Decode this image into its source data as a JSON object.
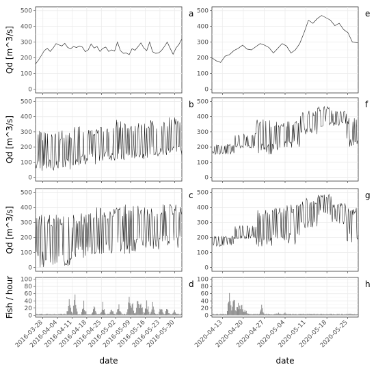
{
  "chart_data": {
    "type": "line",
    "title": "",
    "xlabel": "date",
    "grid": true,
    "columns": [
      {
        "name": "left",
        "x_ticks": [
          "2016-03-28",
          "2016-04-04",
          "2016-04-11",
          "2016-04-18",
          "2016-04-25",
          "2016-05-02",
          "2016-05-09",
          "2016-05-16",
          "2016-05-23",
          "2016-05-30"
        ]
      },
      {
        "name": "right",
        "x_ticks": [
          "2020-04-13",
          "2020-04-20",
          "2020-04-27",
          "2020-05-04",
          "2020-05-11",
          "2020-05-18",
          "2020-05-25"
        ]
      }
    ],
    "rows": [
      {
        "ylabel": "Qd  [m^3/s]",
        "ylim": [
          0,
          500
        ],
        "yticks": [
          "0",
          "100",
          "200",
          "300",
          "400",
          "500"
        ]
      },
      {
        "ylabel": "Qd  [m^3/s]",
        "ylim": [
          0,
          500
        ],
        "yticks": [
          "0",
          "100",
          "200",
          "300",
          "400",
          "500"
        ]
      },
      {
        "ylabel": "Qd  [m^3/s]",
        "ylim": [
          0,
          500
        ],
        "yticks": [
          "0",
          "100",
          "200",
          "300",
          "400",
          "500"
        ]
      },
      {
        "ylabel": "Fish / hour",
        "ylim": [
          0,
          100
        ],
        "yticks": [
          "0",
          "20",
          "40",
          "60",
          "80",
          "100"
        ]
      }
    ],
    "panels": [
      {
        "label": "a",
        "row": 0,
        "col": 0,
        "type": "line",
        "points": [
          [
            0,
            160
          ],
          [
            0.02,
            185
          ],
          [
            0.04,
            215
          ],
          [
            0.06,
            245
          ],
          [
            0.08,
            260
          ],
          [
            0.1,
            240
          ],
          [
            0.12,
            262
          ],
          [
            0.14,
            290
          ],
          [
            0.16,
            282
          ],
          [
            0.18,
            275
          ],
          [
            0.2,
            292
          ],
          [
            0.22,
            265
          ],
          [
            0.24,
            258
          ],
          [
            0.26,
            272
          ],
          [
            0.28,
            265
          ],
          [
            0.3,
            275
          ],
          [
            0.32,
            268
          ],
          [
            0.34,
            238
          ],
          [
            0.36,
            250
          ],
          [
            0.38,
            288
          ],
          [
            0.4,
            262
          ],
          [
            0.42,
            272
          ],
          [
            0.44,
            240
          ],
          [
            0.46,
            260
          ],
          [
            0.48,
            268
          ],
          [
            0.5,
            240
          ],
          [
            0.52,
            250
          ],
          [
            0.54,
            242
          ],
          [
            0.56,
            300
          ],
          [
            0.58,
            245
          ],
          [
            0.6,
            228
          ],
          [
            0.62,
            230
          ],
          [
            0.64,
            220
          ],
          [
            0.66,
            258
          ],
          [
            0.68,
            248
          ],
          [
            0.7,
            270
          ],
          [
            0.72,
            295
          ],
          [
            0.74,
            262
          ],
          [
            0.76,
            245
          ],
          [
            0.78,
            300
          ],
          [
            0.8,
            238
          ],
          [
            0.82,
            228
          ],
          [
            0.84,
            230
          ],
          [
            0.86,
            245
          ],
          [
            0.88,
            270
          ],
          [
            0.9,
            300
          ],
          [
            0.92,
            260
          ],
          [
            0.94,
            222
          ],
          [
            0.96,
            262
          ],
          [
            0.98,
            285
          ],
          [
            1.0,
            320
          ]
        ]
      },
      {
        "label": "b",
        "row": 1,
        "col": 0,
        "type": "dense",
        "segments": [
          [
            0,
            0.25,
            40,
            310
          ],
          [
            0.25,
            0.45,
            80,
            340
          ],
          [
            0.45,
            0.55,
            110,
            330
          ],
          [
            0.55,
            0.62,
            100,
            400
          ],
          [
            0.62,
            0.75,
            120,
            360
          ],
          [
            0.75,
            0.9,
            130,
            380
          ],
          [
            0.9,
            1.0,
            140,
            400
          ]
        ]
      },
      {
        "label": "c",
        "row": 2,
        "col": 0,
        "type": "dense",
        "segments": [
          [
            0,
            0.25,
            0,
            350
          ],
          [
            0.25,
            0.4,
            60,
            360
          ],
          [
            0.4,
            0.55,
            80,
            400
          ],
          [
            0.55,
            0.7,
            90,
            420
          ],
          [
            0.7,
            0.85,
            120,
            400
          ],
          [
            0.85,
            1.0,
            130,
            420
          ]
        ]
      },
      {
        "label": "d",
        "row": 3,
        "col": 0,
        "type": "bar",
        "peaks": [
          [
            0.23,
            48
          ],
          [
            0.27,
            60
          ],
          [
            0.33,
            45
          ],
          [
            0.4,
            30
          ],
          [
            0.46,
            40
          ],
          [
            0.52,
            22
          ],
          [
            0.57,
            35
          ],
          [
            0.64,
            60
          ],
          [
            0.66,
            55
          ],
          [
            0.7,
            70
          ],
          [
            0.72,
            62
          ],
          [
            0.76,
            50
          ],
          [
            0.8,
            38
          ],
          [
            0.86,
            40
          ],
          [
            0.9,
            28
          ],
          [
            0.95,
            22
          ]
        ]
      },
      {
        "label": "e",
        "row": 0,
        "col": 1,
        "type": "line",
        "points": [
          [
            0,
            200
          ],
          [
            0.03,
            180
          ],
          [
            0.06,
            170
          ],
          [
            0.09,
            210
          ],
          [
            0.12,
            220
          ],
          [
            0.15,
            245
          ],
          [
            0.18,
            260
          ],
          [
            0.21,
            280
          ],
          [
            0.24,
            255
          ],
          [
            0.27,
            250
          ],
          [
            0.3,
            270
          ],
          [
            0.33,
            290
          ],
          [
            0.36,
            280
          ],
          [
            0.39,
            265
          ],
          [
            0.42,
            230
          ],
          [
            0.45,
            260
          ],
          [
            0.48,
            290
          ],
          [
            0.51,
            275
          ],
          [
            0.54,
            230
          ],
          [
            0.57,
            250
          ],
          [
            0.6,
            290
          ],
          [
            0.63,
            360
          ],
          [
            0.66,
            440
          ],
          [
            0.69,
            420
          ],
          [
            0.72,
            450
          ],
          [
            0.75,
            470
          ],
          [
            0.78,
            455
          ],
          [
            0.81,
            440
          ],
          [
            0.84,
            405
          ],
          [
            0.87,
            420
          ],
          [
            0.9,
            380
          ],
          [
            0.93,
            360
          ],
          [
            0.96,
            300
          ],
          [
            1.0,
            295
          ]
        ]
      },
      {
        "label": "f",
        "row": 1,
        "col": 1,
        "type": "dense",
        "segments": [
          [
            0,
            0.15,
            150,
            220
          ],
          [
            0.15,
            0.3,
            190,
            290
          ],
          [
            0.3,
            0.45,
            150,
            390
          ],
          [
            0.45,
            0.6,
            190,
            370
          ],
          [
            0.6,
            0.72,
            280,
            440
          ],
          [
            0.72,
            0.82,
            330,
            470
          ],
          [
            0.82,
            0.92,
            340,
            440
          ],
          [
            0.92,
            1.0,
            200,
            400
          ]
        ]
      },
      {
        "label": "g",
        "row": 2,
        "col": 1,
        "type": "dense",
        "segments": [
          [
            0,
            0.15,
            140,
            210
          ],
          [
            0.15,
            0.3,
            190,
            280
          ],
          [
            0.3,
            0.45,
            140,
            400
          ],
          [
            0.45,
            0.6,
            150,
            420
          ],
          [
            0.6,
            0.72,
            260,
            460
          ],
          [
            0.72,
            0.82,
            350,
            490
          ],
          [
            0.82,
            0.92,
            280,
            430
          ],
          [
            0.92,
            1.0,
            160,
            400
          ]
        ]
      },
      {
        "label": "h",
        "row": 3,
        "col": 1,
        "type": "bar",
        "peaks": [
          [
            0.12,
            68
          ],
          [
            0.15,
            58
          ],
          [
            0.18,
            55
          ],
          [
            0.2,
            40
          ],
          [
            0.23,
            22
          ],
          [
            0.34,
            30
          ],
          [
            0.45,
            10
          ],
          [
            0.5,
            8
          ],
          [
            0.62,
            6
          ],
          [
            0.7,
            5
          ],
          [
            0.82,
            4
          ],
          [
            0.92,
            4
          ]
        ]
      }
    ]
  }
}
